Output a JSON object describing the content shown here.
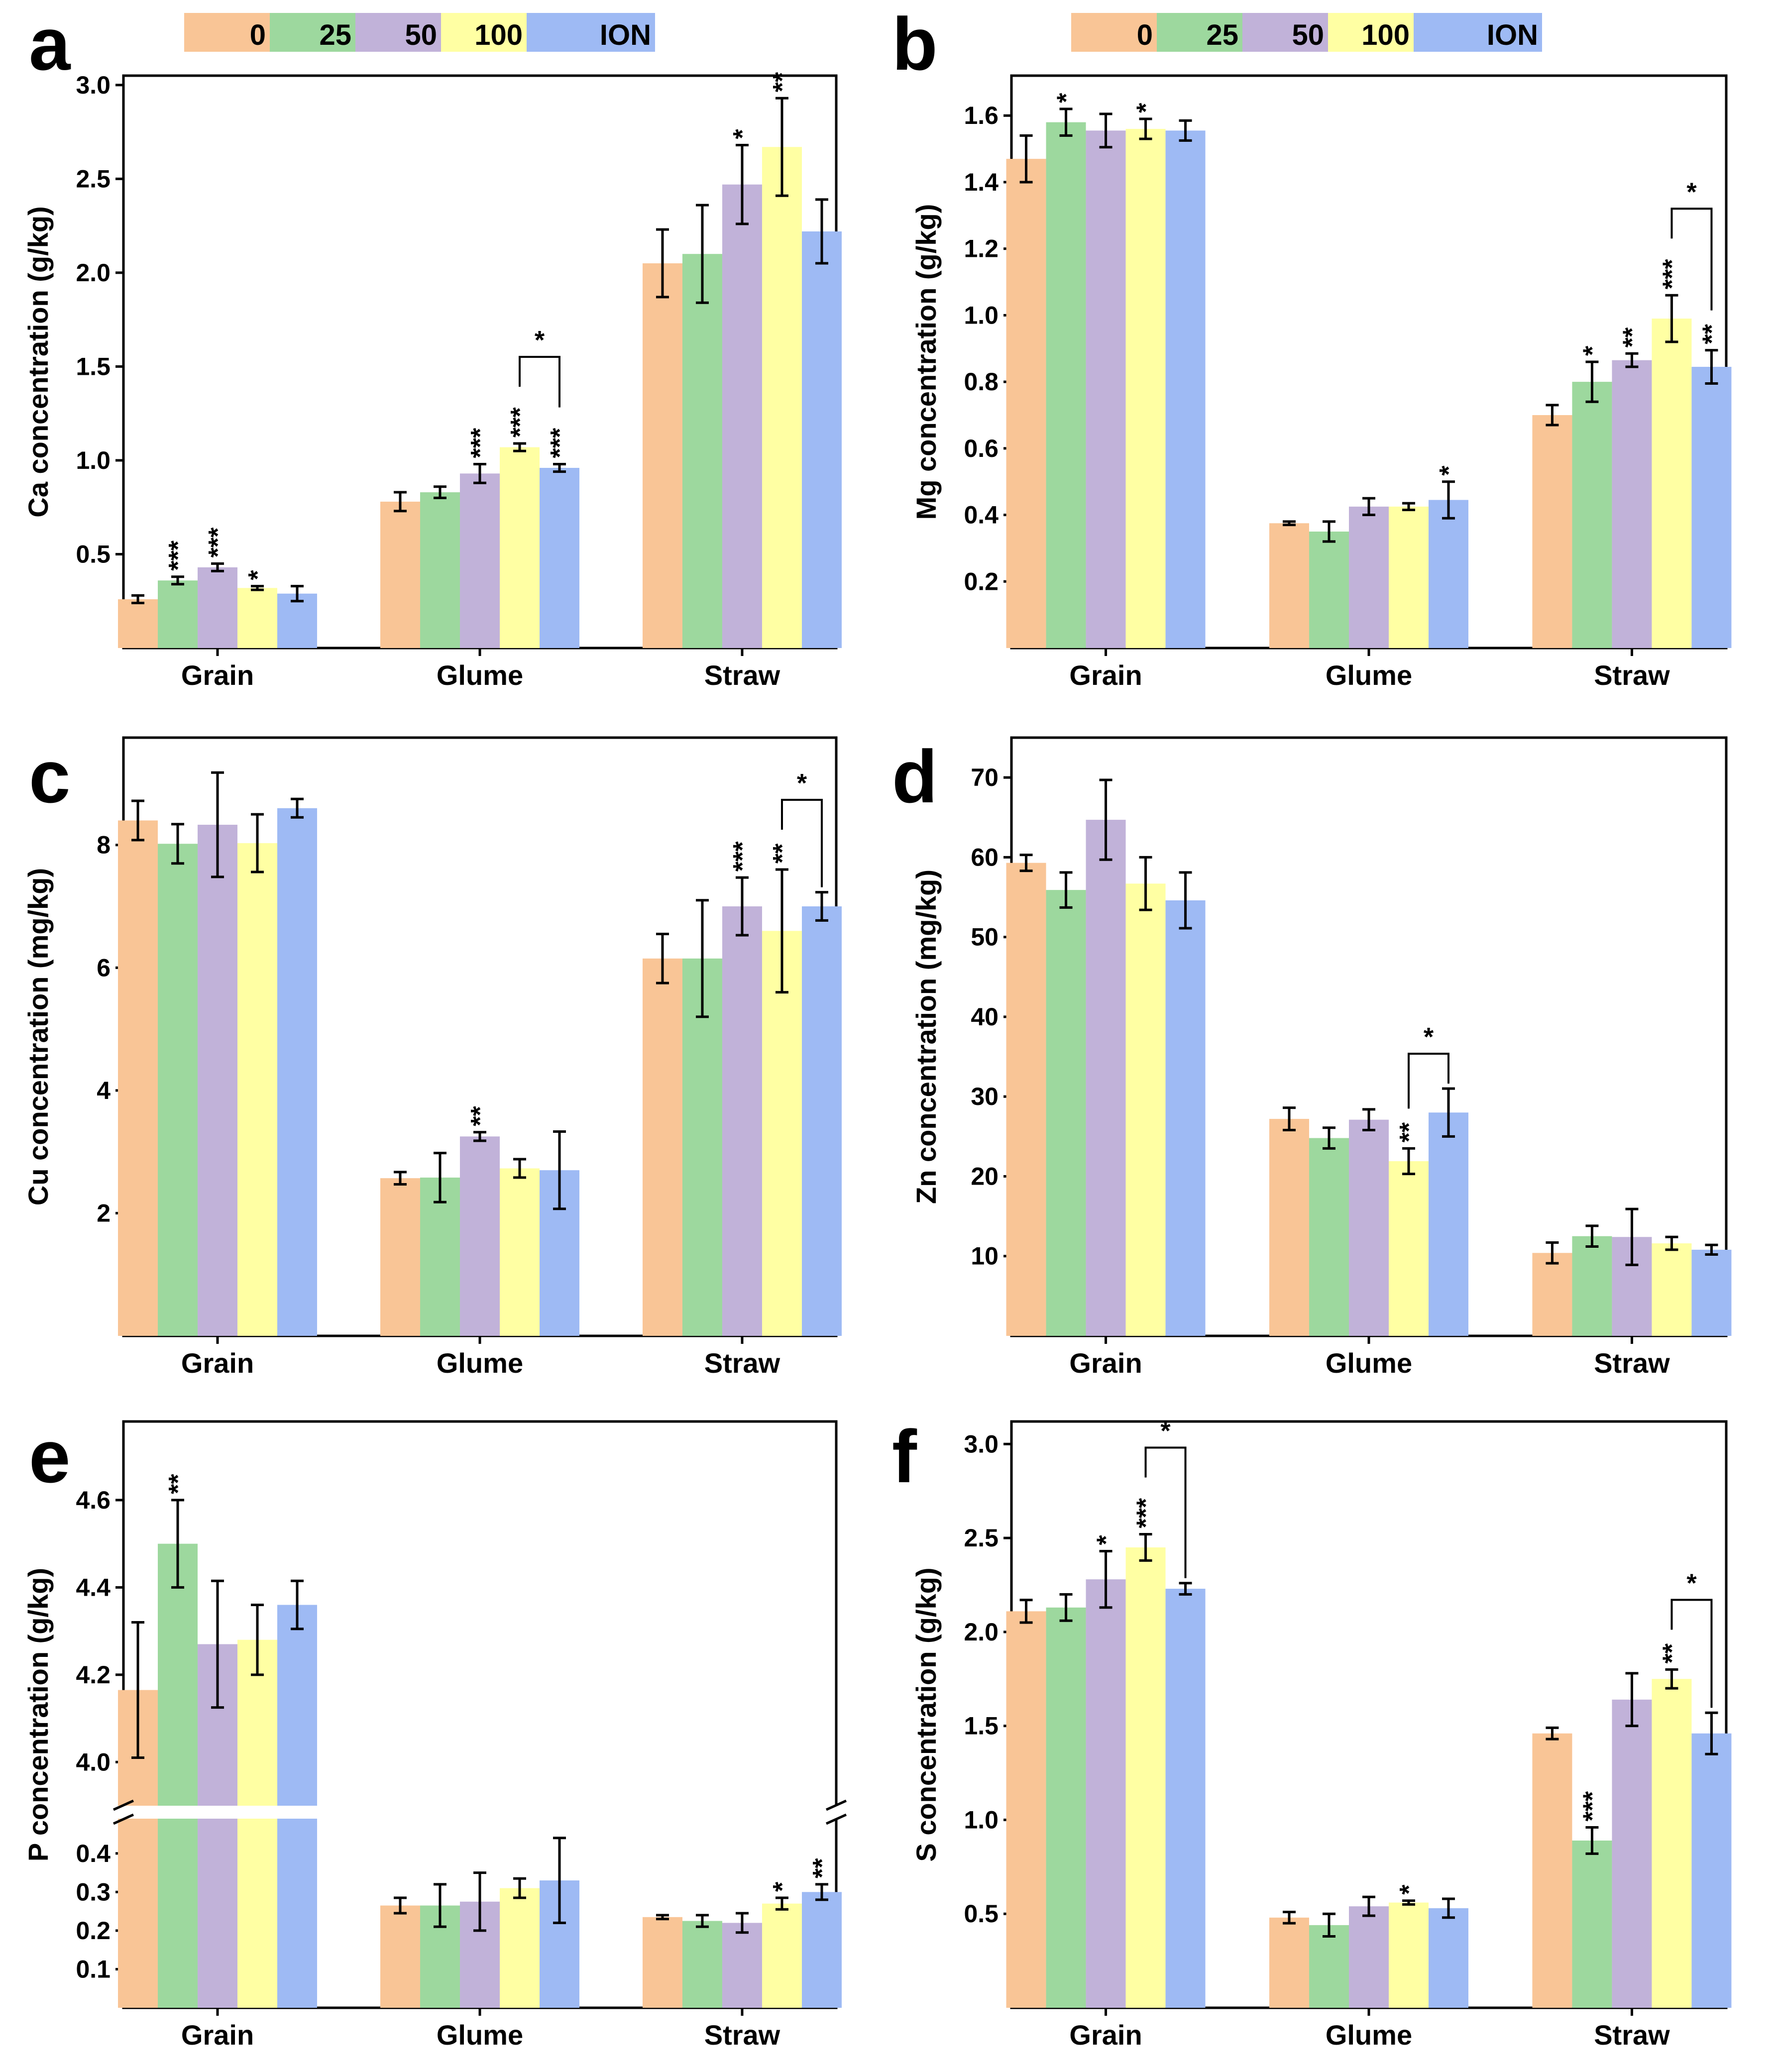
{
  "legend": {
    "entries": [
      "0",
      "25",
      "50",
      "100",
      "ION"
    ],
    "colors": [
      "#F9C596",
      "#9DD89E",
      "#C1B2D9",
      "#FFFFA3",
      "#9EBAF4"
    ]
  },
  "chart_data": [
    {
      "panel": "a",
      "type": "bar",
      "ylabel": "Ca concentration (g/kg)",
      "categories": [
        "Grain",
        "Glume",
        "Straw"
      ],
      "ylim": [
        0.0,
        3.05
      ],
      "yticks": [
        "0.5",
        "1.0",
        "1.5",
        "2.0",
        "2.5",
        "3.0"
      ],
      "series": [
        {
          "name": "0",
          "values": [
            0.26,
            0.78,
            2.05
          ],
          "errors": [
            0.02,
            0.05,
            0.18
          ]
        },
        {
          "name": "25",
          "values": [
            0.36,
            0.83,
            2.1
          ],
          "errors": [
            0.02,
            0.03,
            0.26
          ]
        },
        {
          "name": "50",
          "values": [
            0.43,
            0.93,
            2.47
          ],
          "errors": [
            0.02,
            0.05,
            0.21
          ]
        },
        {
          "name": "100",
          "values": [
            0.32,
            1.07,
            2.67
          ],
          "errors": [
            0.01,
            0.02,
            0.26
          ]
        },
        {
          "name": "ION",
          "values": [
            0.29,
            0.96,
            2.22
          ],
          "errors": [
            0.04,
            0.02,
            0.17
          ]
        }
      ],
      "annotations": [
        [
          "",
          "***",
          "***",
          "*",
          ""
        ],
        [
          "",
          "",
          "***",
          "***",
          "***"
        ],
        [
          "",
          "",
          "*",
          "**",
          ""
        ]
      ],
      "brackets": [
        {
          "category": 1,
          "from": 3,
          "to": 4,
          "label": "*"
        }
      ]
    },
    {
      "panel": "b",
      "type": "bar",
      "ylabel": "Mg concentration (g/kg)",
      "categories": [
        "Grain",
        "Glume",
        "Straw"
      ],
      "ylim": [
        0.0,
        1.72
      ],
      "yticks": [
        "0.2",
        "0.4",
        "0.6",
        "0.8",
        "1.0",
        "1.2",
        "1.4",
        "1.6"
      ],
      "series": [
        {
          "name": "0",
          "values": [
            1.47,
            0.375,
            0.7
          ],
          "errors": [
            0.07,
            0.005,
            0.03
          ]
        },
        {
          "name": "25",
          "values": [
            1.58,
            0.35,
            0.8
          ],
          "errors": [
            0.04,
            0.03,
            0.06
          ]
        },
        {
          "name": "50",
          "values": [
            1.555,
            0.425,
            0.865
          ],
          "errors": [
            0.05,
            0.025,
            0.02
          ]
        },
        {
          "name": "100",
          "values": [
            1.56,
            0.425,
            0.99
          ],
          "errors": [
            0.03,
            0.01,
            0.07
          ]
        },
        {
          "name": "ION",
          "values": [
            1.555,
            0.445,
            0.845
          ],
          "errors": [
            0.03,
            0.055,
            0.05
          ]
        }
      ],
      "annotations": [
        [
          "",
          "*",
          "",
          "*",
          ""
        ],
        [
          "",
          "",
          "",
          "",
          "*"
        ],
        [
          "",
          "*",
          "**",
          "***",
          "**"
        ]
      ],
      "brackets": [
        {
          "category": 2,
          "from": 3,
          "to": 4,
          "label": "*"
        }
      ]
    },
    {
      "panel": "c",
      "type": "bar",
      "ylabel": "Cu concentration (mg/kg)",
      "categories": [
        "Grain",
        "Glume",
        "Straw"
      ],
      "ylim": [
        0.0,
        9.75
      ],
      "yticks": [
        "2",
        "4",
        "6",
        "8"
      ],
      "series": [
        {
          "name": "0",
          "values": [
            8.4,
            2.57,
            6.15
          ],
          "errors": [
            0.32,
            0.1,
            0.4
          ]
        },
        {
          "name": "25",
          "values": [
            8.02,
            2.58,
            6.15
          ],
          "errors": [
            0.32,
            0.4,
            0.95
          ]
        },
        {
          "name": "50",
          "values": [
            8.33,
            3.25,
            7.0
          ],
          "errors": [
            0.85,
            0.07,
            0.47
          ]
        },
        {
          "name": "100",
          "values": [
            8.03,
            2.73,
            6.6
          ],
          "errors": [
            0.47,
            0.15,
            1.0
          ]
        },
        {
          "name": "ION",
          "values": [
            8.6,
            2.7,
            7.0
          ],
          "errors": [
            0.15,
            0.63,
            0.23
          ]
        }
      ],
      "annotations": [
        [
          "",
          "",
          "",
          "",
          ""
        ],
        [
          "",
          "",
          "**",
          "",
          ""
        ],
        [
          "",
          "",
          "***",
          "**",
          ""
        ]
      ],
      "brackets": [
        {
          "category": 2,
          "from": 3,
          "to": 4,
          "label": "*"
        }
      ]
    },
    {
      "panel": "d",
      "type": "bar",
      "ylabel": "Zn concentration (mg/kg)",
      "categories": [
        "Grain",
        "Glume",
        "Straw"
      ],
      "ylim": [
        0.0,
        75.0
      ],
      "yticks": [
        "10",
        "20",
        "30",
        "40",
        "50",
        "60",
        "70"
      ],
      "series": [
        {
          "name": "0",
          "values": [
            59.3,
            27.2,
            10.4
          ],
          "errors": [
            1.0,
            1.4,
            1.3
          ]
        },
        {
          "name": "25",
          "values": [
            55.9,
            24.8,
            12.5
          ],
          "errors": [
            2.2,
            1.3,
            1.3
          ]
        },
        {
          "name": "50",
          "values": [
            64.7,
            27.1,
            12.4
          ],
          "errors": [
            5.0,
            1.3,
            3.5
          ]
        },
        {
          "name": "100",
          "values": [
            56.7,
            21.9,
            11.6
          ],
          "errors": [
            3.3,
            1.6,
            0.8
          ]
        },
        {
          "name": "ION",
          "values": [
            54.6,
            28.0,
            10.8
          ],
          "errors": [
            3.5,
            3.0,
            0.6
          ]
        }
      ],
      "annotations": [
        [
          "",
          "",
          "",
          "",
          ""
        ],
        [
          "",
          "",
          "",
          "**",
          ""
        ],
        [
          "",
          "",
          "",
          "",
          ""
        ]
      ],
      "brackets": [
        {
          "category": 1,
          "from": 3,
          "to": 4,
          "label": "*"
        }
      ]
    },
    {
      "panel": "e",
      "type": "bar",
      "broken_axis": true,
      "ylabel": "P concentration (g/kg)",
      "categories": [
        "Grain",
        "Glume",
        "Straw"
      ],
      "ylim_lower": [
        0.0,
        0.49
      ],
      "ylim_upper": [
        3.9,
        4.78
      ],
      "yticks_lower": [
        "0.1",
        "0.2",
        "0.3",
        "0.4"
      ],
      "yticks_upper": [
        "4.0",
        "4.2",
        "4.4",
        "4.6"
      ],
      "series": [
        {
          "name": "0",
          "values": [
            4.165,
            0.265,
            0.235
          ],
          "errors": [
            0.155,
            0.02,
            0.005
          ]
        },
        {
          "name": "25",
          "values": [
            4.5,
            0.265,
            0.225
          ],
          "errors": [
            0.1,
            0.055,
            0.015
          ]
        },
        {
          "name": "50",
          "values": [
            4.27,
            0.275,
            0.22
          ],
          "errors": [
            0.145,
            0.075,
            0.025
          ]
        },
        {
          "name": "100",
          "values": [
            4.28,
            0.31,
            0.27
          ],
          "errors": [
            0.08,
            0.025,
            0.015
          ]
        },
        {
          "name": "ION",
          "values": [
            4.36,
            0.33,
            0.3
          ],
          "errors": [
            0.055,
            0.11,
            0.02
          ]
        }
      ],
      "annotations": [
        [
          "",
          "**",
          "",
          "",
          ""
        ],
        [
          "",
          "",
          "",
          "",
          ""
        ],
        [
          "",
          "",
          "",
          "*",
          "**"
        ]
      ],
      "brackets": []
    },
    {
      "panel": "f",
      "type": "bar",
      "ylabel": "S concentration (g/kg)",
      "categories": [
        "Grain",
        "Glume",
        "Straw"
      ],
      "ylim": [
        0.0,
        3.12
      ],
      "yticks": [
        "0.5",
        "1.0",
        "1.5",
        "2.0",
        "2.5",
        "3.0"
      ],
      "series": [
        {
          "name": "0",
          "values": [
            2.11,
            0.48,
            1.46
          ],
          "errors": [
            0.06,
            0.03,
            0.03
          ]
        },
        {
          "name": "25",
          "values": [
            2.13,
            0.44,
            0.89
          ],
          "errors": [
            0.07,
            0.06,
            0.07
          ]
        },
        {
          "name": "50",
          "values": [
            2.28,
            0.54,
            1.64
          ],
          "errors": [
            0.15,
            0.05,
            0.14
          ]
        },
        {
          "name": "100",
          "values": [
            2.45,
            0.56,
            1.75
          ],
          "errors": [
            0.07,
            0.01,
            0.05
          ]
        },
        {
          "name": "ION",
          "values": [
            2.23,
            0.53,
            1.46
          ],
          "errors": [
            0.03,
            0.05,
            0.11
          ]
        }
      ],
      "annotations": [
        [
          "",
          "",
          "*",
          "***",
          ""
        ],
        [
          "",
          "",
          "",
          "*",
          ""
        ],
        [
          "",
          "***",
          "",
          "**",
          ""
        ]
      ],
      "brackets": [
        {
          "category": 0,
          "from": 3,
          "to": 4,
          "label": "*"
        },
        {
          "category": 2,
          "from": 3,
          "to": 4,
          "label": "*"
        }
      ]
    }
  ]
}
